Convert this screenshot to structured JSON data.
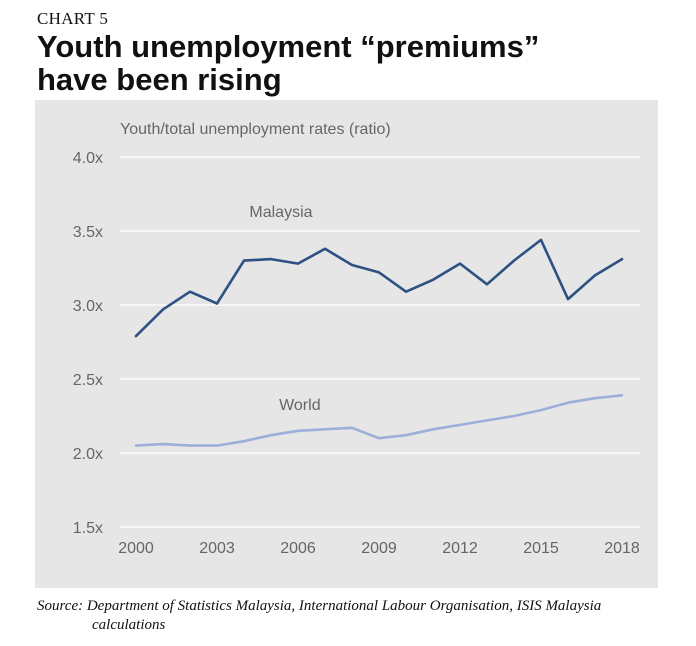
{
  "header": {
    "eyebrow": "CHART 5",
    "title_line1": "Youth unemployment “premiums”",
    "title_line2": "have been rising"
  },
  "source": {
    "line1": "Source: Department of Statistics Malaysia, International Labour Organisation, ISIS Malaysia",
    "line2": "calculations"
  },
  "chart_data": {
    "type": "line",
    "ylabel": "Youth/total unemployment rates (ratio)",
    "xlabel": "",
    "x": [
      2000,
      2001,
      2002,
      2003,
      2004,
      2005,
      2006,
      2007,
      2008,
      2009,
      2010,
      2011,
      2012,
      2013,
      2014,
      2015,
      2016,
      2017,
      2018
    ],
    "x_ticks": [
      "2000",
      "2003",
      "2006",
      "2009",
      "2012",
      "2015",
      "2018"
    ],
    "y_ticks": [
      "1.5x",
      "2.0x",
      "2.5x",
      "3.0x",
      "3.5x",
      "4.0x"
    ],
    "ylim": [
      1.5,
      4.0
    ],
    "grid": "horizontal",
    "series": [
      {
        "name": "Malaysia",
        "color": "#2e5183",
        "values": [
          2.79,
          2.97,
          3.09,
          3.01,
          3.3,
          3.31,
          3.28,
          3.38,
          3.27,
          3.22,
          3.09,
          3.17,
          3.28,
          3.14,
          3.3,
          3.44,
          3.04,
          3.2,
          3.31
        ]
      },
      {
        "name": "World",
        "color": "#9daedb",
        "values": [
          2.05,
          2.06,
          2.05,
          2.05,
          2.08,
          2.12,
          2.15,
          2.16,
          2.17,
          2.1,
          2.12,
          2.16,
          2.19,
          2.22,
          2.25,
          2.29,
          2.34,
          2.37,
          2.39
        ]
      }
    ]
  }
}
